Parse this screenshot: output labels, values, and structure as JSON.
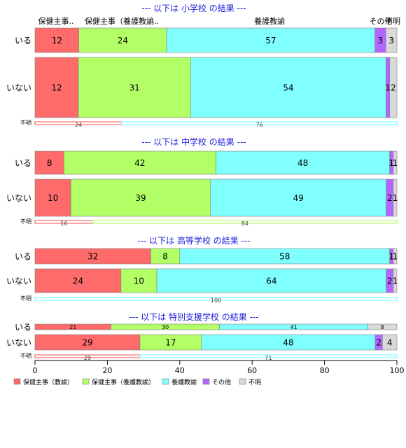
{
  "chart_data": {
    "type": "bar",
    "orientation": "horizontal",
    "stacked": "percent",
    "xlim": [
      0,
      100
    ],
    "x_ticks": [
      0,
      20,
      40,
      60,
      80,
      100
    ],
    "grid": false,
    "legend_placement": "bottom-left",
    "categories_legend": [
      {
        "name": "保健主事（教諭）",
        "color": "#ff6b6b"
      },
      {
        "name": "保健主事（養護教諭）",
        "color": "#b2ff66"
      },
      {
        "name": "養護教諭",
        "color": "#80ffff"
      },
      {
        "name": "その他",
        "color": "#b266ff"
      },
      {
        "name": "不明",
        "color": "#d9d9d9"
      }
    ],
    "top_labels": [
      "保健主事..",
      "保健主事（養護教諭..",
      "養護教諭",
      "その他",
      "不明"
    ],
    "panels": [
      {
        "title": "--- 以下は 小学校 の結果 ---",
        "rows": [
          {
            "label": "いる",
            "size": "large",
            "values": [
              12,
              24,
              57,
              3,
              3
            ],
            "labels": [
              "12",
              "24",
              "57",
              "3",
              "3"
            ]
          },
          {
            "label": "いない",
            "size": "large",
            "values": [
              12,
              31,
              54,
              1,
              2
            ],
            "labels": [
              "12",
              "31",
              "54",
              "1",
              "2"
            ]
          },
          {
            "label": "不明",
            "size": "thin",
            "values": [
              24,
              0,
              76,
              0,
              0
            ],
            "labels": [
              "24",
              "",
              "76",
              "",
              ""
            ]
          }
        ]
      },
      {
        "title": "--- 以下は 中学校 の結果 ---",
        "rows": [
          {
            "label": "いる",
            "size": "medium",
            "values": [
              8,
              42,
              48,
              1,
              1
            ],
            "labels": [
              "8",
              "42",
              "48",
              "1",
              "1"
            ]
          },
          {
            "label": "いない",
            "size": "large",
            "values": [
              10,
              39,
              49,
              2,
              1
            ],
            "labels": [
              "10",
              "39",
              "49",
              "2",
              "1"
            ]
          },
          {
            "label": "不明",
            "size": "thin",
            "values": [
              16,
              84,
              0,
              0,
              0
            ],
            "labels": [
              "16",
              "84",
              "",
              "",
              ""
            ]
          }
        ]
      },
      {
        "title": "--- 以下は 高等学校 の結果 ---",
        "rows": [
          {
            "label": "いる",
            "size": "small",
            "values": [
              32,
              8,
              58,
              1,
              1
            ],
            "labels": [
              "32",
              "8",
              "58",
              "1",
              "1"
            ]
          },
          {
            "label": "いない",
            "size": "medium",
            "values": [
              24,
              10,
              64,
              2,
              1
            ],
            "labels": [
              "24",
              "10",
              "64",
              "2",
              "1"
            ]
          },
          {
            "label": "不明",
            "size": "thin",
            "values": [
              0,
              0,
              100,
              0,
              0
            ],
            "labels": [
              "",
              "",
              "100",
              "",
              ""
            ]
          }
        ]
      },
      {
        "title": "--- 以下は 特別支援学校 の結果 ---",
        "rows": [
          {
            "label": "いる",
            "size": "tiny",
            "values": [
              21,
              30,
              41,
              0,
              8
            ],
            "labels": [
              "21",
              "30",
              "41",
              "",
              "8"
            ]
          },
          {
            "label": "いない",
            "size": "small",
            "values": [
              29,
              17,
              48,
              2,
              4
            ],
            "labels": [
              "29",
              "17",
              "48",
              "2",
              "4"
            ]
          },
          {
            "label": "不明",
            "size": "thin",
            "values": [
              29,
              0,
              71,
              0,
              0
            ],
            "labels": [
              "29",
              "",
              "71",
              "",
              ""
            ]
          }
        ]
      }
    ]
  }
}
